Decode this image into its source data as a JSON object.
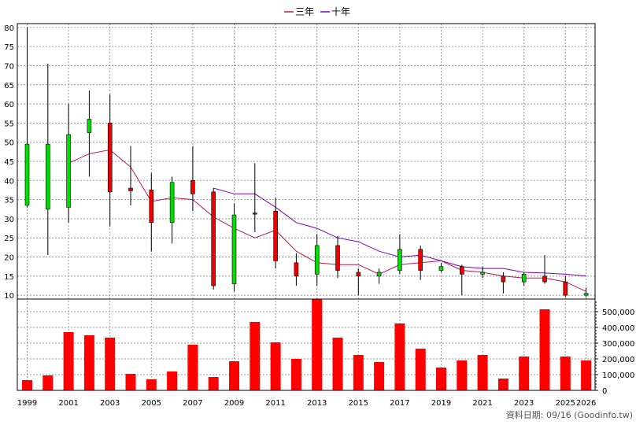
{
  "chart_data": {
    "type": "candlestick+bar",
    "legend": [
      {
        "name": "三年",
        "color": "#c0145a"
      },
      {
        "name": "十年",
        "color": "#7f00c8"
      }
    ],
    "legend_position": "top-center",
    "grid": true,
    "years": [
      1999,
      2000,
      2001,
      2002,
      2003,
      2004,
      2005,
      2006,
      2007,
      2008,
      2009,
      2010,
      2011,
      2012,
      2013,
      2014,
      2015,
      2016,
      2017,
      2018,
      2019,
      2020,
      2021,
      2022,
      2023,
      2024,
      2025,
      2026
    ],
    "x_tick_labels": [
      "1999",
      "2001",
      "2003",
      "2005",
      "2007",
      "2009",
      "2011",
      "2013",
      "2015",
      "2017",
      "2019",
      "2021",
      "2023",
      "2025",
      "2026"
    ],
    "price_axis": {
      "ylim": [
        9,
        81
      ],
      "ticks": [
        10,
        15,
        20,
        25,
        30,
        35,
        40,
        45,
        50,
        55,
        60,
        65,
        70,
        75,
        80
      ]
    },
    "candles": [
      {
        "year": 1999,
        "open": 33.5,
        "close": 49.5,
        "high": 80,
        "low": 33
      },
      {
        "year": 2000,
        "open": 32.5,
        "close": 49.5,
        "high": 70.5,
        "low": 20.5
      },
      {
        "year": 2001,
        "open": 33,
        "close": 52,
        "high": 60,
        "low": 29
      },
      {
        "year": 2002,
        "open": 52.5,
        "close": 56,
        "high": 63.5,
        "low": 41
      },
      {
        "year": 2003,
        "open": 55,
        "close": 37,
        "high": 62.5,
        "low": 28
      },
      {
        "year": 2004,
        "open": 38,
        "close": 37.3,
        "high": 49,
        "low": 33.5
      },
      {
        "year": 2005,
        "open": 37.5,
        "close": 29,
        "high": 42,
        "low": 21.5
      },
      {
        "year": 2006,
        "open": 29,
        "close": 39.5,
        "high": 41,
        "low": 23.5
      },
      {
        "year": 2007,
        "open": 40,
        "close": 36.5,
        "high": 49,
        "low": 32
      },
      {
        "year": 2008,
        "open": 37,
        "close": 12.5,
        "high": 38,
        "low": 11.5
      },
      {
        "year": 2009,
        "open": 13,
        "close": 31,
        "high": 34,
        "low": 11
      },
      {
        "year": 2010,
        "open": 31.5,
        "close": 31.2,
        "high": 44.5,
        "low": 26.5
      },
      {
        "year": 2011,
        "open": 32,
        "close": 19,
        "high": 35.5,
        "low": 17
      },
      {
        "year": 2012,
        "open": 18.5,
        "close": 15,
        "high": 21,
        "low": 12.5
      },
      {
        "year": 2013,
        "open": 15.5,
        "close": 23,
        "high": 26,
        "low": 12.5
      },
      {
        "year": 2014,
        "open": 23,
        "close": 16.5,
        "high": 25.5,
        "low": 14.5
      },
      {
        "year": 2015,
        "open": 16,
        "close": 15,
        "high": 17,
        "low": 10
      },
      {
        "year": 2016,
        "open": 15,
        "close": 16,
        "high": 17,
        "low": 13
      },
      {
        "year": 2017,
        "open": 16.5,
        "close": 22,
        "high": 26,
        "low": 15.5
      },
      {
        "year": 2018,
        "open": 22,
        "close": 16.5,
        "high": 23,
        "low": 14
      },
      {
        "year": 2019,
        "open": 16.5,
        "close": 17.5,
        "high": 18.5,
        "low": 16
      },
      {
        "year": 2020,
        "open": 17.5,
        "close": 15.5,
        "high": 18,
        "low": 10
      },
      {
        "year": 2021,
        "open": 15.5,
        "close": 16,
        "high": 17.5,
        "low": 14.5
      },
      {
        "year": 2022,
        "open": 15,
        "close": 13.5,
        "high": 16,
        "low": 10.5
      },
      {
        "year": 2023,
        "open": 13.5,
        "close": 15.5,
        "high": 16,
        "low": 12.5
      },
      {
        "year": 2024,
        "open": 15,
        "close": 13.5,
        "high": 20.5,
        "low": 13
      },
      {
        "year": 2025,
        "open": 13.5,
        "close": 10,
        "high": 15,
        "low": 9.5
      },
      {
        "year": 2026,
        "open": 10,
        "close": 10.5,
        "high": 12,
        "low": 9.5
      }
    ],
    "series": [
      {
        "name": "三年",
        "x": [
          2001,
          2002,
          2003,
          2004,
          2005,
          2006,
          2007,
          2008,
          2009,
          2010,
          2011,
          2012,
          2013,
          2014,
          2015,
          2016,
          2017,
          2018,
          2019,
          2020,
          2021,
          2022,
          2023,
          2024,
          2025,
          2026
        ],
        "values": [
          44.5,
          47,
          48,
          43.5,
          34.5,
          35.5,
          35,
          30.5,
          27.5,
          25,
          27,
          21.5,
          18.5,
          18,
          18,
          15.5,
          18,
          18.5,
          19,
          16.5,
          16,
          15,
          14.5,
          14.5,
          13.5,
          11
        ]
      },
      {
        "name": "十年",
        "x": [
          2008,
          2009,
          2010,
          2011,
          2012,
          2013,
          2014,
          2015,
          2016,
          2017,
          2018,
          2019,
          2020,
          2021,
          2022,
          2023,
          2024,
          2025,
          2026
        ],
        "values": [
          38,
          36.5,
          36.5,
          33,
          29,
          27.5,
          25,
          24,
          21.5,
          20,
          20.5,
          19,
          17.5,
          17,
          17,
          16,
          15.8,
          15.5,
          15
        ]
      }
    ],
    "volume_axis": {
      "ylim": [
        0,
        580000
      ],
      "tick_labels": [
        "0",
        "100,000",
        "200,000",
        "300,000",
        "400,000",
        "500,000"
      ],
      "ticks": [
        0,
        100000,
        200000,
        300000,
        400000,
        500000
      ]
    },
    "volumes": [
      65000,
      95000,
      370000,
      350000,
      335000,
      105000,
      70000,
      120000,
      290000,
      85000,
      185000,
      435000,
      305000,
      200000,
      585000,
      335000,
      225000,
      180000,
      425000,
      265000,
      145000,
      190000,
      225000,
      75000,
      215000,
      515000,
      215000,
      190000
    ],
    "colors": {
      "up": "#00dd00",
      "down": "#ee0000",
      "volume": "#ff0000",
      "wick": "#000000"
    },
    "footer": "資料日期: 09/16  (Goodinfo.tw)"
  }
}
